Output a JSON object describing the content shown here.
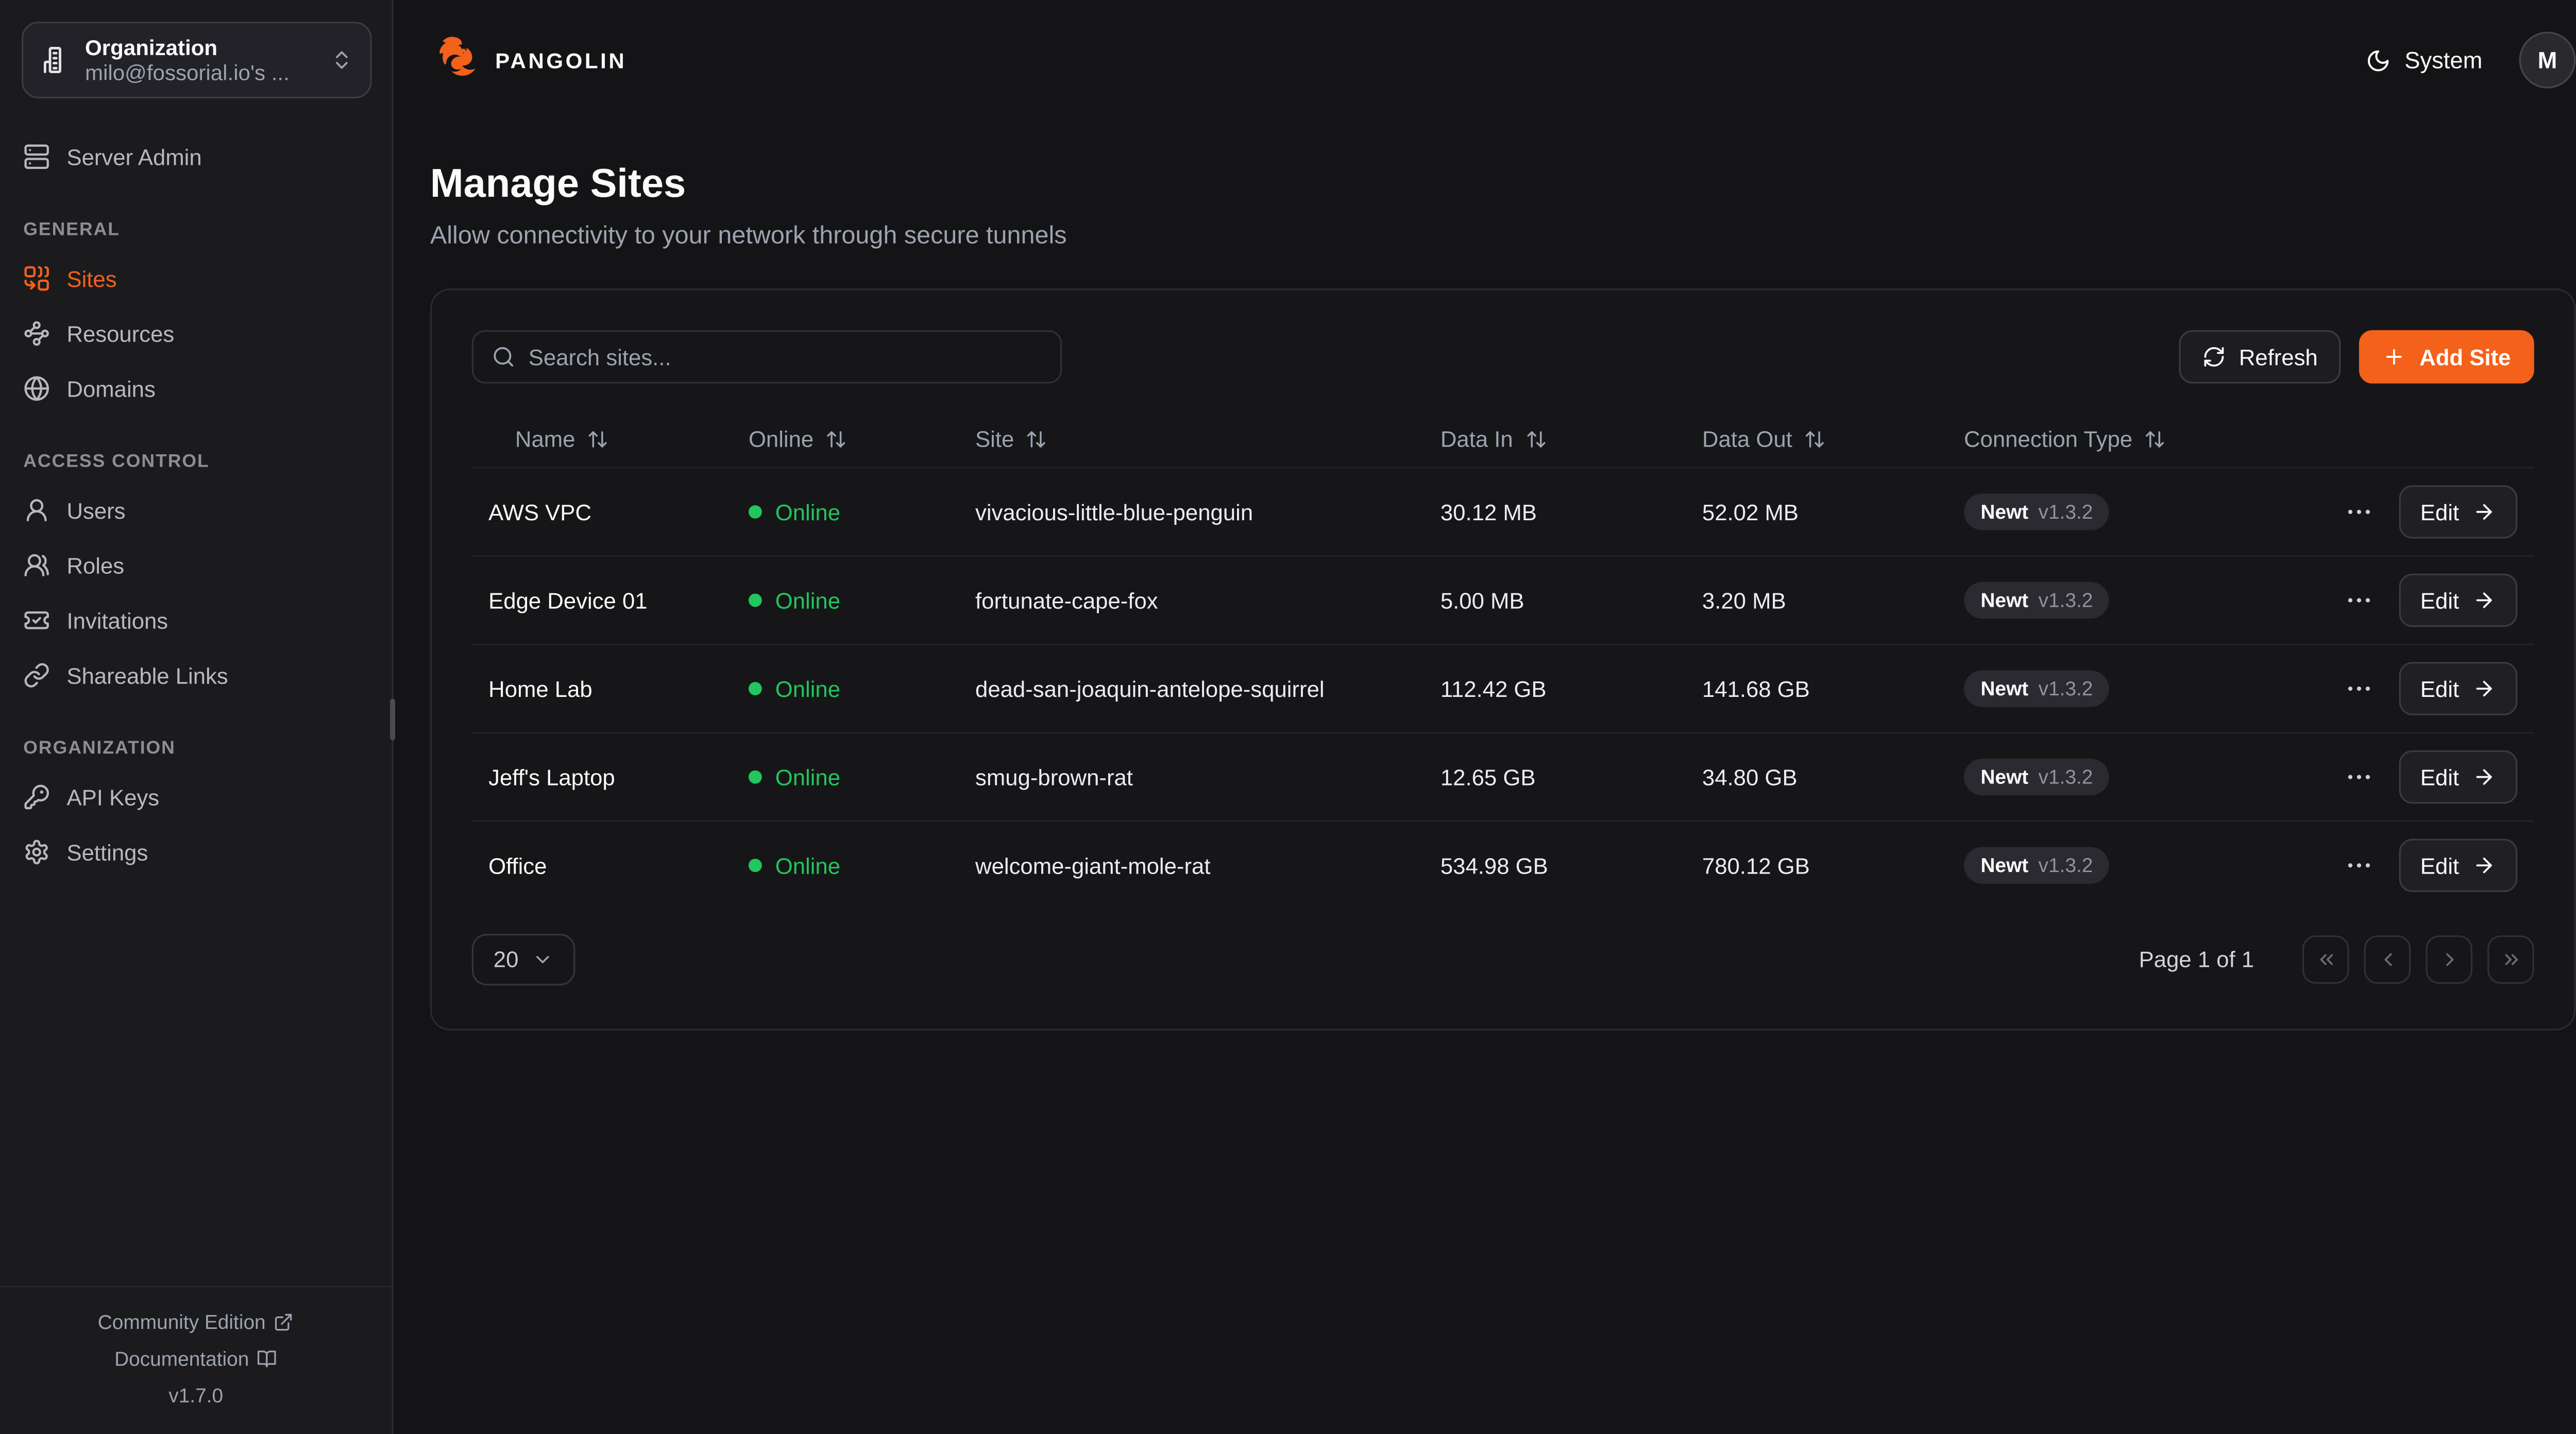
{
  "org_switcher": {
    "label": "Organization",
    "value": "milo@fossorial.io's ..."
  },
  "sidebar": {
    "server_admin": {
      "label": "Server Admin",
      "icon": "server"
    },
    "sections": [
      {
        "label": "GENERAL",
        "items": [
          {
            "label": "Sites",
            "icon": "combine",
            "active": true
          },
          {
            "label": "Resources",
            "icon": "waypoints"
          },
          {
            "label": "Domains",
            "icon": "globe"
          }
        ]
      },
      {
        "label": "ACCESS CONTROL",
        "items": [
          {
            "label": "Users",
            "icon": "user-round"
          },
          {
            "label": "Roles",
            "icon": "users-round"
          },
          {
            "label": "Invitations",
            "icon": "ticket-check"
          },
          {
            "label": "Shareable Links",
            "icon": "link"
          }
        ]
      },
      {
        "label": "ORGANIZATION",
        "items": [
          {
            "label": "API Keys",
            "icon": "key-round"
          },
          {
            "label": "Settings",
            "icon": "settings"
          }
        ]
      }
    ],
    "footer": {
      "community": "Community Edition",
      "docs": "Documentation",
      "version": "v1.7.0"
    }
  },
  "header": {
    "brand": "PANGOLIN",
    "theme_label": "System",
    "avatar_initial": "M"
  },
  "page": {
    "title": "Manage Sites",
    "subtitle": "Allow connectivity to your network through secure tunnels"
  },
  "toolbar": {
    "search_placeholder": "Search sites...",
    "refresh_label": "Refresh",
    "add_site_label": "Add Site"
  },
  "table": {
    "columns": [
      "Name",
      "Online",
      "Site",
      "Data In",
      "Data Out",
      "Connection Type"
    ],
    "rows": [
      {
        "name": "AWS VPC",
        "status": "Online",
        "site": "vivacious-little-blue-penguin",
        "data_in": "30.12 MB",
        "data_out": "52.02 MB",
        "conn_type": "Newt",
        "conn_version": "v1.3.2",
        "edit_label": "Edit"
      },
      {
        "name": "Edge Device 01",
        "status": "Online",
        "site": "fortunate-cape-fox",
        "data_in": "5.00 MB",
        "data_out": "3.20 MB",
        "conn_type": "Newt",
        "conn_version": "v1.3.2",
        "edit_label": "Edit"
      },
      {
        "name": "Home Lab",
        "status": "Online",
        "site": "dead-san-joaquin-antelope-squirrel",
        "data_in": "112.42 GB",
        "data_out": "141.68 GB",
        "conn_type": "Newt",
        "conn_version": "v1.3.2",
        "edit_label": "Edit"
      },
      {
        "name": "Jeff's Laptop",
        "status": "Online",
        "site": "smug-brown-rat",
        "data_in": "12.65 GB",
        "data_out": "34.80 GB",
        "conn_type": "Newt",
        "conn_version": "v1.3.2",
        "edit_label": "Edit"
      },
      {
        "name": "Office",
        "status": "Online",
        "site": "welcome-giant-mole-rat",
        "data_in": "534.98 GB",
        "data_out": "780.12 GB",
        "conn_type": "Newt",
        "conn_version": "v1.3.2",
        "edit_label": "Edit"
      }
    ]
  },
  "pagination": {
    "page_size": "20",
    "status": "Page 1 of 1"
  },
  "colors": {
    "accent": "#F3611B",
    "online_green": "#22C55E"
  }
}
